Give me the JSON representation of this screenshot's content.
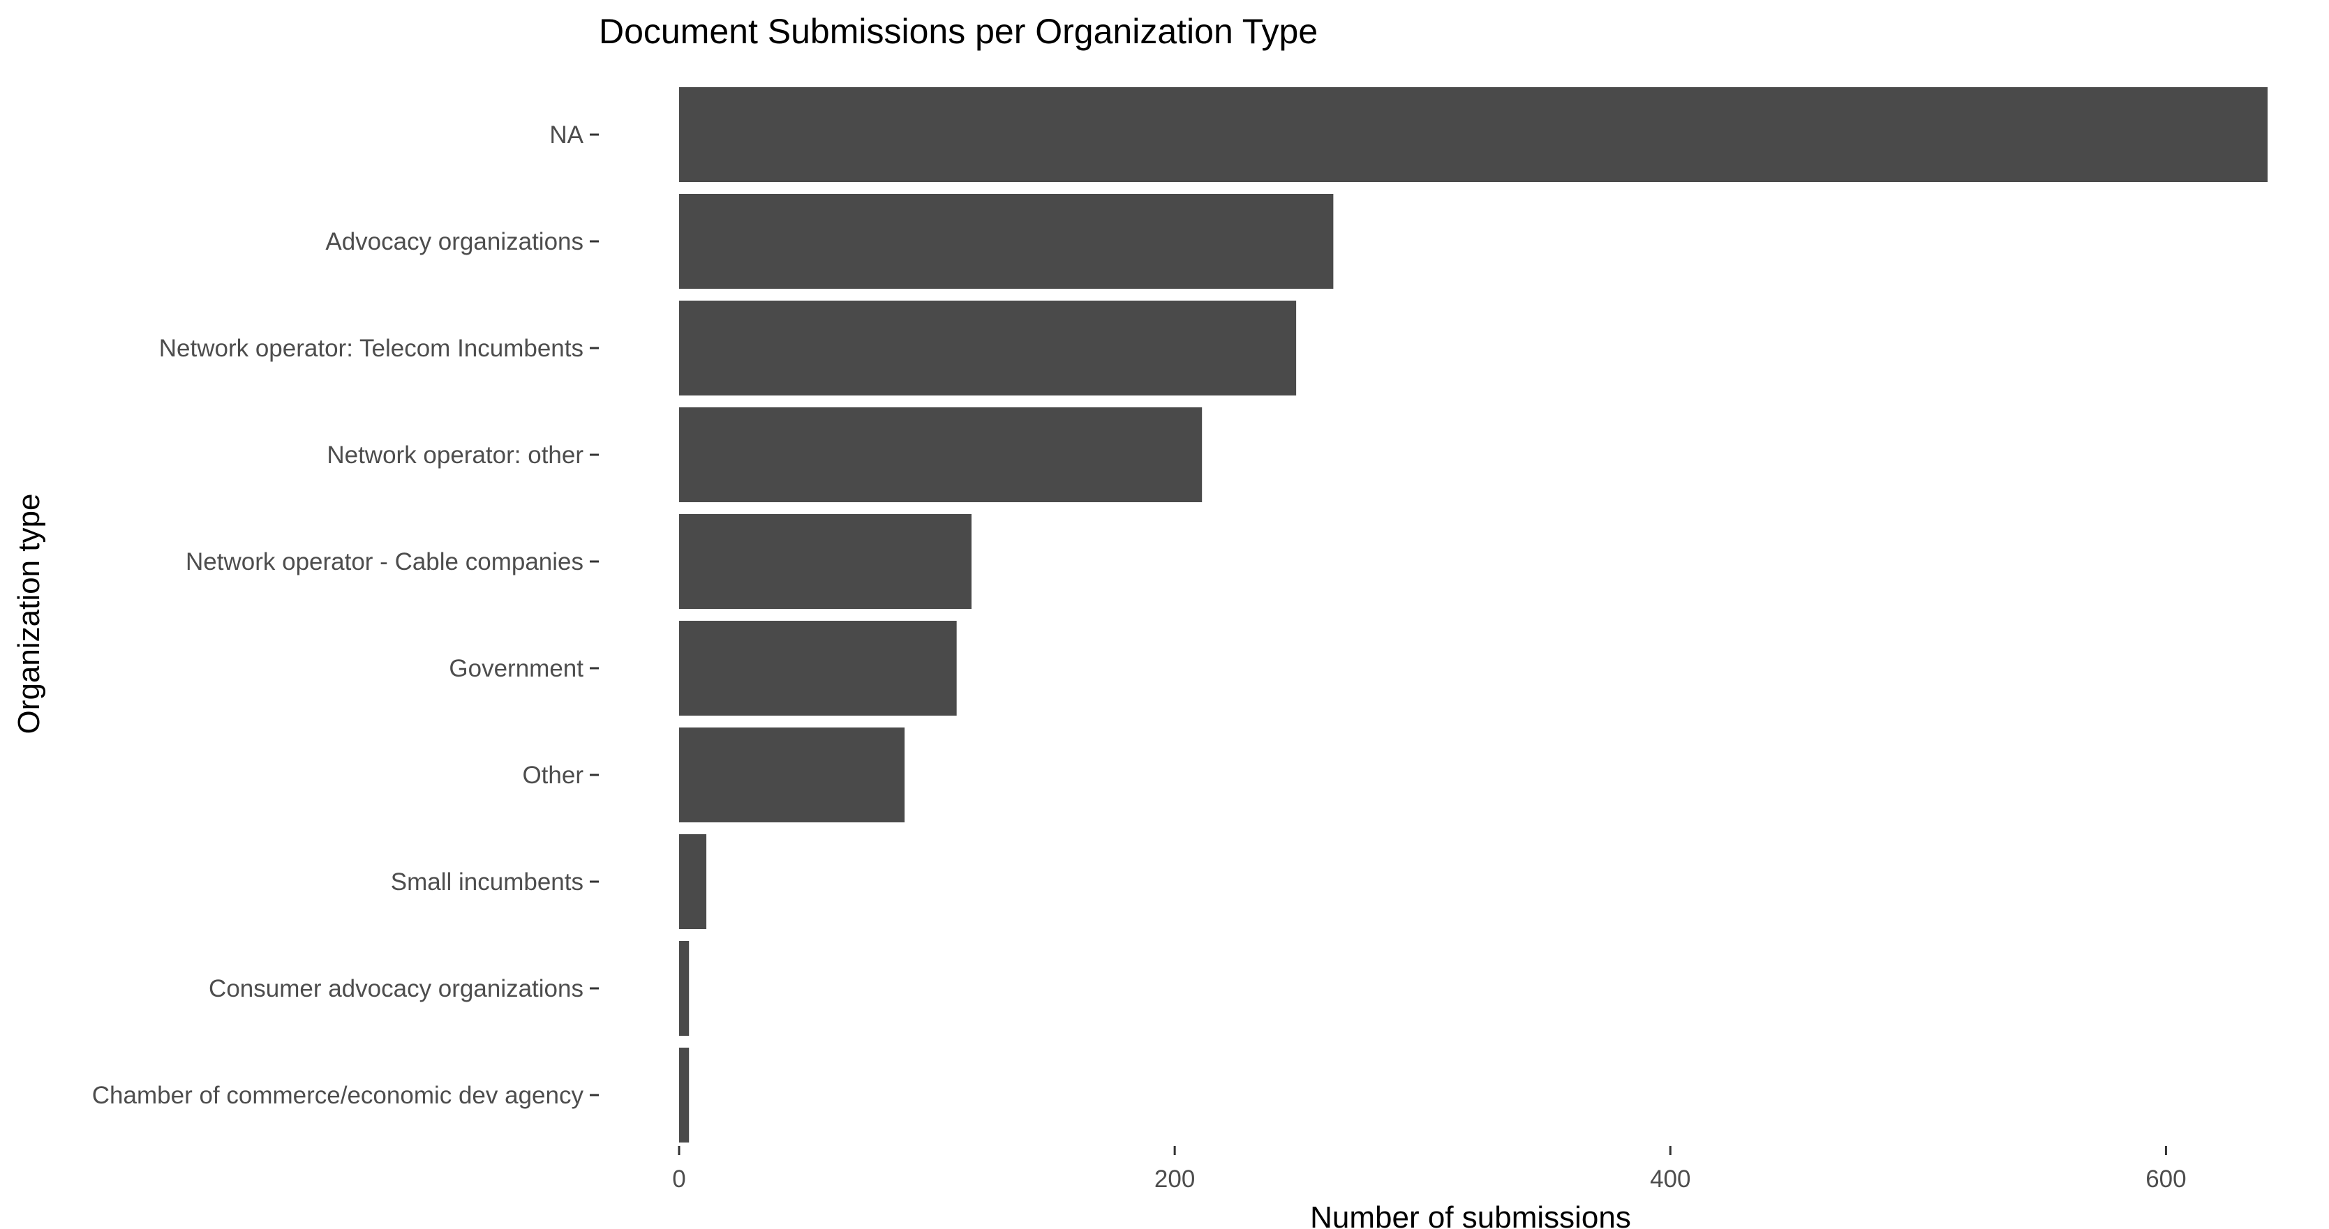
{
  "chart_data": {
    "type": "bar",
    "orientation": "horizontal",
    "title": "Document Submissions per Organization Type",
    "xlabel": "Number of submissions",
    "ylabel": "Organization type",
    "categories": [
      "NA",
      "Advocacy organizations",
      "Network operator: Telecom Incumbents",
      "Network operator: other",
      "Network operator - Cable companies",
      "Government",
      "Other",
      "Small incumbents",
      "Consumer advocacy organizations",
      "Chamber of commerce/economic dev agency"
    ],
    "values": [
      641,
      264,
      249,
      211,
      118,
      112,
      91,
      11,
      4,
      4
    ],
    "x_ticks": [
      0,
      200,
      400,
      600
    ],
    "xlim": [
      0,
      641
    ],
    "grid": false,
    "bar_color": "#4a4a4a",
    "background": "#ffffff"
  }
}
